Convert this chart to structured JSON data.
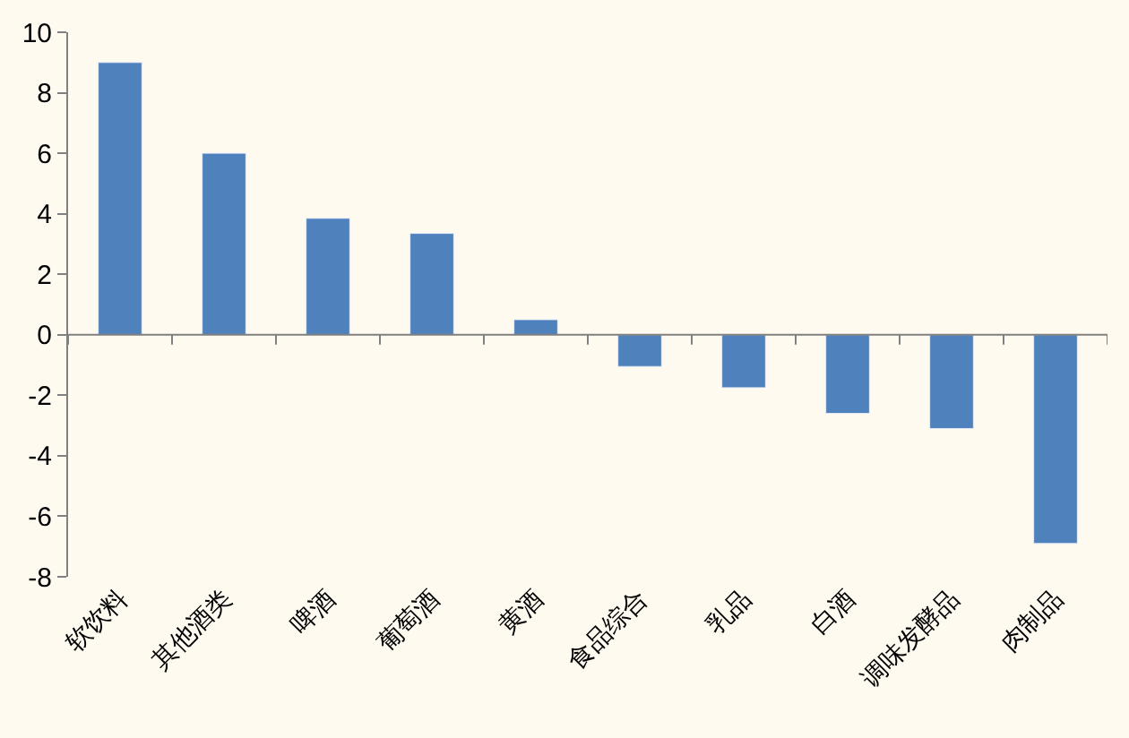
{
  "chart_data": {
    "type": "bar",
    "categories": [
      "软饮料",
      "其他酒类",
      "啤酒",
      "葡萄酒",
      "黄酒",
      "食品综合",
      "乳品",
      "白酒",
      "调味发酵品",
      "肉制品"
    ],
    "values": [
      9.0,
      6.0,
      3.85,
      3.35,
      0.5,
      -1.05,
      -1.75,
      -2.6,
      -3.1,
      -6.9
    ],
    "color": "#4f81bd",
    "ylim": [
      -8,
      10
    ],
    "yticks": [
      -8,
      -6,
      -4,
      -2,
      0,
      2,
      4,
      6,
      8,
      10
    ]
  }
}
